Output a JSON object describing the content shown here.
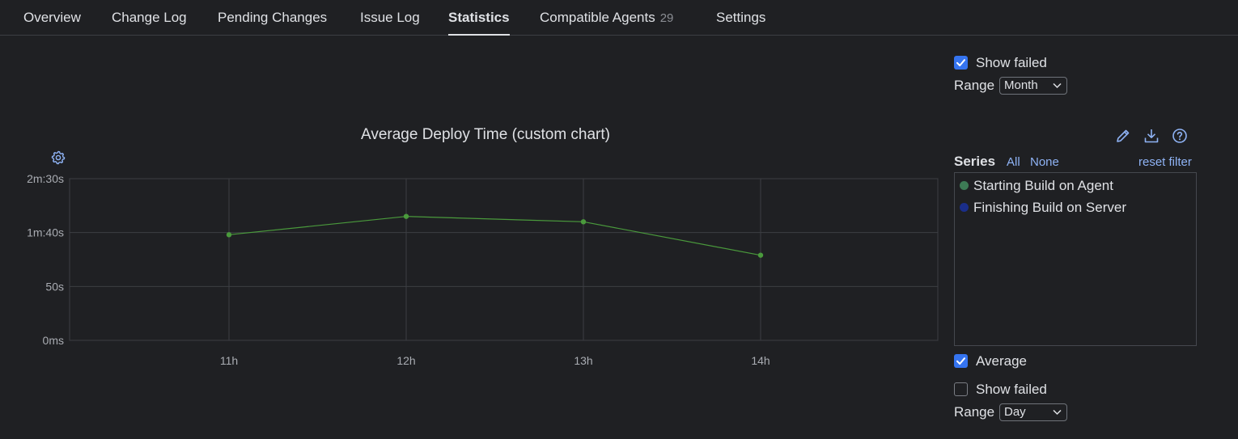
{
  "tabs": [
    {
      "label": "Overview"
    },
    {
      "label": "Change Log"
    },
    {
      "label": "Pending Changes"
    },
    {
      "label": "Issue Log"
    },
    {
      "label": "Statistics",
      "active": true
    },
    {
      "label": "Compatible Agents",
      "count": "29"
    },
    {
      "label": "Settings"
    }
  ],
  "top_controls": {
    "show_failed_label": "Show failed",
    "show_failed_checked": true,
    "range_label": "Range",
    "range_value": "Month"
  },
  "chart_panel": {
    "title": "Average Deploy Time (custom chart)",
    "icons": [
      "pencil-icon",
      "download-icon",
      "help-icon",
      "gear-icon"
    ]
  },
  "series_panel": {
    "heading": "Series",
    "all_label": "All",
    "none_label": "None",
    "reset_label": "reset filter",
    "items": [
      {
        "label": "Starting Build on Agent",
        "color": "#3d7a55"
      },
      {
        "label": "Finishing Build on Server",
        "color": "#1a2e8a"
      }
    ]
  },
  "bottom_controls": {
    "average_label": "Average",
    "average_checked": true,
    "show_failed_label": "Show failed",
    "show_failed_checked": false,
    "range_label": "Range",
    "range_value": "Day"
  },
  "chart_data": {
    "type": "line",
    "title": "Average Deploy Time (custom chart)",
    "xlabel": "",
    "ylabel": "",
    "x": [
      "11h",
      "12h",
      "13h",
      "14h"
    ],
    "yticks": [
      "0ms",
      "50s",
      "1m:40s",
      "2m:30s"
    ],
    "ylim_seconds": [
      0,
      150
    ],
    "grid": true,
    "series": [
      {
        "name": "Starting Build on Agent",
        "color": "#4a9a3c",
        "values_seconds": [
          98,
          115,
          110,
          79
        ]
      }
    ]
  }
}
